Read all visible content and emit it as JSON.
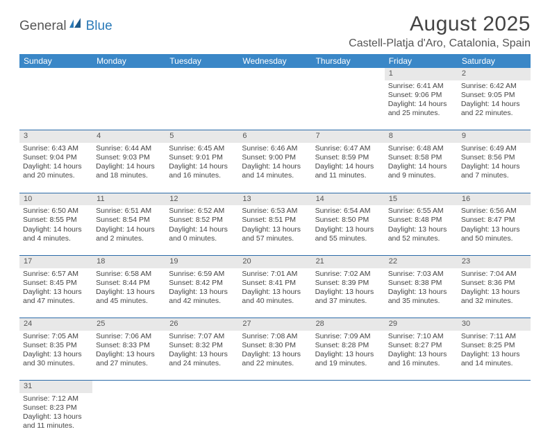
{
  "logo": {
    "general": "General",
    "blue": "Blue"
  },
  "title": "August 2025",
  "location": "Castell-Platja d'Aro, Catalonia, Spain",
  "colors": {
    "header_bg": "#3a87c7",
    "header_fg": "#ffffff",
    "daynum_bg": "#e8e8e8",
    "row_divider": "#2a6aa8",
    "text": "#444444",
    "logo_blue": "#2a7ab8",
    "logo_gray": "#555555"
  },
  "weekdays": [
    "Sunday",
    "Monday",
    "Tuesday",
    "Wednesday",
    "Thursday",
    "Friday",
    "Saturday"
  ],
  "weeks": [
    [
      null,
      null,
      null,
      null,
      null,
      {
        "n": "1",
        "sr": "Sunrise: 6:41 AM",
        "ss": "Sunset: 9:06 PM",
        "d1": "Daylight: 14 hours",
        "d2": "and 25 minutes."
      },
      {
        "n": "2",
        "sr": "Sunrise: 6:42 AM",
        "ss": "Sunset: 9:05 PM",
        "d1": "Daylight: 14 hours",
        "d2": "and 22 minutes."
      }
    ],
    [
      {
        "n": "3",
        "sr": "Sunrise: 6:43 AM",
        "ss": "Sunset: 9:04 PM",
        "d1": "Daylight: 14 hours",
        "d2": "and 20 minutes."
      },
      {
        "n": "4",
        "sr": "Sunrise: 6:44 AM",
        "ss": "Sunset: 9:03 PM",
        "d1": "Daylight: 14 hours",
        "d2": "and 18 minutes."
      },
      {
        "n": "5",
        "sr": "Sunrise: 6:45 AM",
        "ss": "Sunset: 9:01 PM",
        "d1": "Daylight: 14 hours",
        "d2": "and 16 minutes."
      },
      {
        "n": "6",
        "sr": "Sunrise: 6:46 AM",
        "ss": "Sunset: 9:00 PM",
        "d1": "Daylight: 14 hours",
        "d2": "and 14 minutes."
      },
      {
        "n": "7",
        "sr": "Sunrise: 6:47 AM",
        "ss": "Sunset: 8:59 PM",
        "d1": "Daylight: 14 hours",
        "d2": "and 11 minutes."
      },
      {
        "n": "8",
        "sr": "Sunrise: 6:48 AM",
        "ss": "Sunset: 8:58 PM",
        "d1": "Daylight: 14 hours",
        "d2": "and 9 minutes."
      },
      {
        "n": "9",
        "sr": "Sunrise: 6:49 AM",
        "ss": "Sunset: 8:56 PM",
        "d1": "Daylight: 14 hours",
        "d2": "and 7 minutes."
      }
    ],
    [
      {
        "n": "10",
        "sr": "Sunrise: 6:50 AM",
        "ss": "Sunset: 8:55 PM",
        "d1": "Daylight: 14 hours",
        "d2": "and 4 minutes."
      },
      {
        "n": "11",
        "sr": "Sunrise: 6:51 AM",
        "ss": "Sunset: 8:54 PM",
        "d1": "Daylight: 14 hours",
        "d2": "and 2 minutes."
      },
      {
        "n": "12",
        "sr": "Sunrise: 6:52 AM",
        "ss": "Sunset: 8:52 PM",
        "d1": "Daylight: 14 hours",
        "d2": "and 0 minutes."
      },
      {
        "n": "13",
        "sr": "Sunrise: 6:53 AM",
        "ss": "Sunset: 8:51 PM",
        "d1": "Daylight: 13 hours",
        "d2": "and 57 minutes."
      },
      {
        "n": "14",
        "sr": "Sunrise: 6:54 AM",
        "ss": "Sunset: 8:50 PM",
        "d1": "Daylight: 13 hours",
        "d2": "and 55 minutes."
      },
      {
        "n": "15",
        "sr": "Sunrise: 6:55 AM",
        "ss": "Sunset: 8:48 PM",
        "d1": "Daylight: 13 hours",
        "d2": "and 52 minutes."
      },
      {
        "n": "16",
        "sr": "Sunrise: 6:56 AM",
        "ss": "Sunset: 8:47 PM",
        "d1": "Daylight: 13 hours",
        "d2": "and 50 minutes."
      }
    ],
    [
      {
        "n": "17",
        "sr": "Sunrise: 6:57 AM",
        "ss": "Sunset: 8:45 PM",
        "d1": "Daylight: 13 hours",
        "d2": "and 47 minutes."
      },
      {
        "n": "18",
        "sr": "Sunrise: 6:58 AM",
        "ss": "Sunset: 8:44 PM",
        "d1": "Daylight: 13 hours",
        "d2": "and 45 minutes."
      },
      {
        "n": "19",
        "sr": "Sunrise: 6:59 AM",
        "ss": "Sunset: 8:42 PM",
        "d1": "Daylight: 13 hours",
        "d2": "and 42 minutes."
      },
      {
        "n": "20",
        "sr": "Sunrise: 7:01 AM",
        "ss": "Sunset: 8:41 PM",
        "d1": "Daylight: 13 hours",
        "d2": "and 40 minutes."
      },
      {
        "n": "21",
        "sr": "Sunrise: 7:02 AM",
        "ss": "Sunset: 8:39 PM",
        "d1": "Daylight: 13 hours",
        "d2": "and 37 minutes."
      },
      {
        "n": "22",
        "sr": "Sunrise: 7:03 AM",
        "ss": "Sunset: 8:38 PM",
        "d1": "Daylight: 13 hours",
        "d2": "and 35 minutes."
      },
      {
        "n": "23",
        "sr": "Sunrise: 7:04 AM",
        "ss": "Sunset: 8:36 PM",
        "d1": "Daylight: 13 hours",
        "d2": "and 32 minutes."
      }
    ],
    [
      {
        "n": "24",
        "sr": "Sunrise: 7:05 AM",
        "ss": "Sunset: 8:35 PM",
        "d1": "Daylight: 13 hours",
        "d2": "and 30 minutes."
      },
      {
        "n": "25",
        "sr": "Sunrise: 7:06 AM",
        "ss": "Sunset: 8:33 PM",
        "d1": "Daylight: 13 hours",
        "d2": "and 27 minutes."
      },
      {
        "n": "26",
        "sr": "Sunrise: 7:07 AM",
        "ss": "Sunset: 8:32 PM",
        "d1": "Daylight: 13 hours",
        "d2": "and 24 minutes."
      },
      {
        "n": "27",
        "sr": "Sunrise: 7:08 AM",
        "ss": "Sunset: 8:30 PM",
        "d1": "Daylight: 13 hours",
        "d2": "and 22 minutes."
      },
      {
        "n": "28",
        "sr": "Sunrise: 7:09 AM",
        "ss": "Sunset: 8:28 PM",
        "d1": "Daylight: 13 hours",
        "d2": "and 19 minutes."
      },
      {
        "n": "29",
        "sr": "Sunrise: 7:10 AM",
        "ss": "Sunset: 8:27 PM",
        "d1": "Daylight: 13 hours",
        "d2": "and 16 minutes."
      },
      {
        "n": "30",
        "sr": "Sunrise: 7:11 AM",
        "ss": "Sunset: 8:25 PM",
        "d1": "Daylight: 13 hours",
        "d2": "and 14 minutes."
      }
    ],
    [
      {
        "n": "31",
        "sr": "Sunrise: 7:12 AM",
        "ss": "Sunset: 8:23 PM",
        "d1": "Daylight: 13 hours",
        "d2": "and 11 minutes."
      },
      null,
      null,
      null,
      null,
      null,
      null
    ]
  ]
}
